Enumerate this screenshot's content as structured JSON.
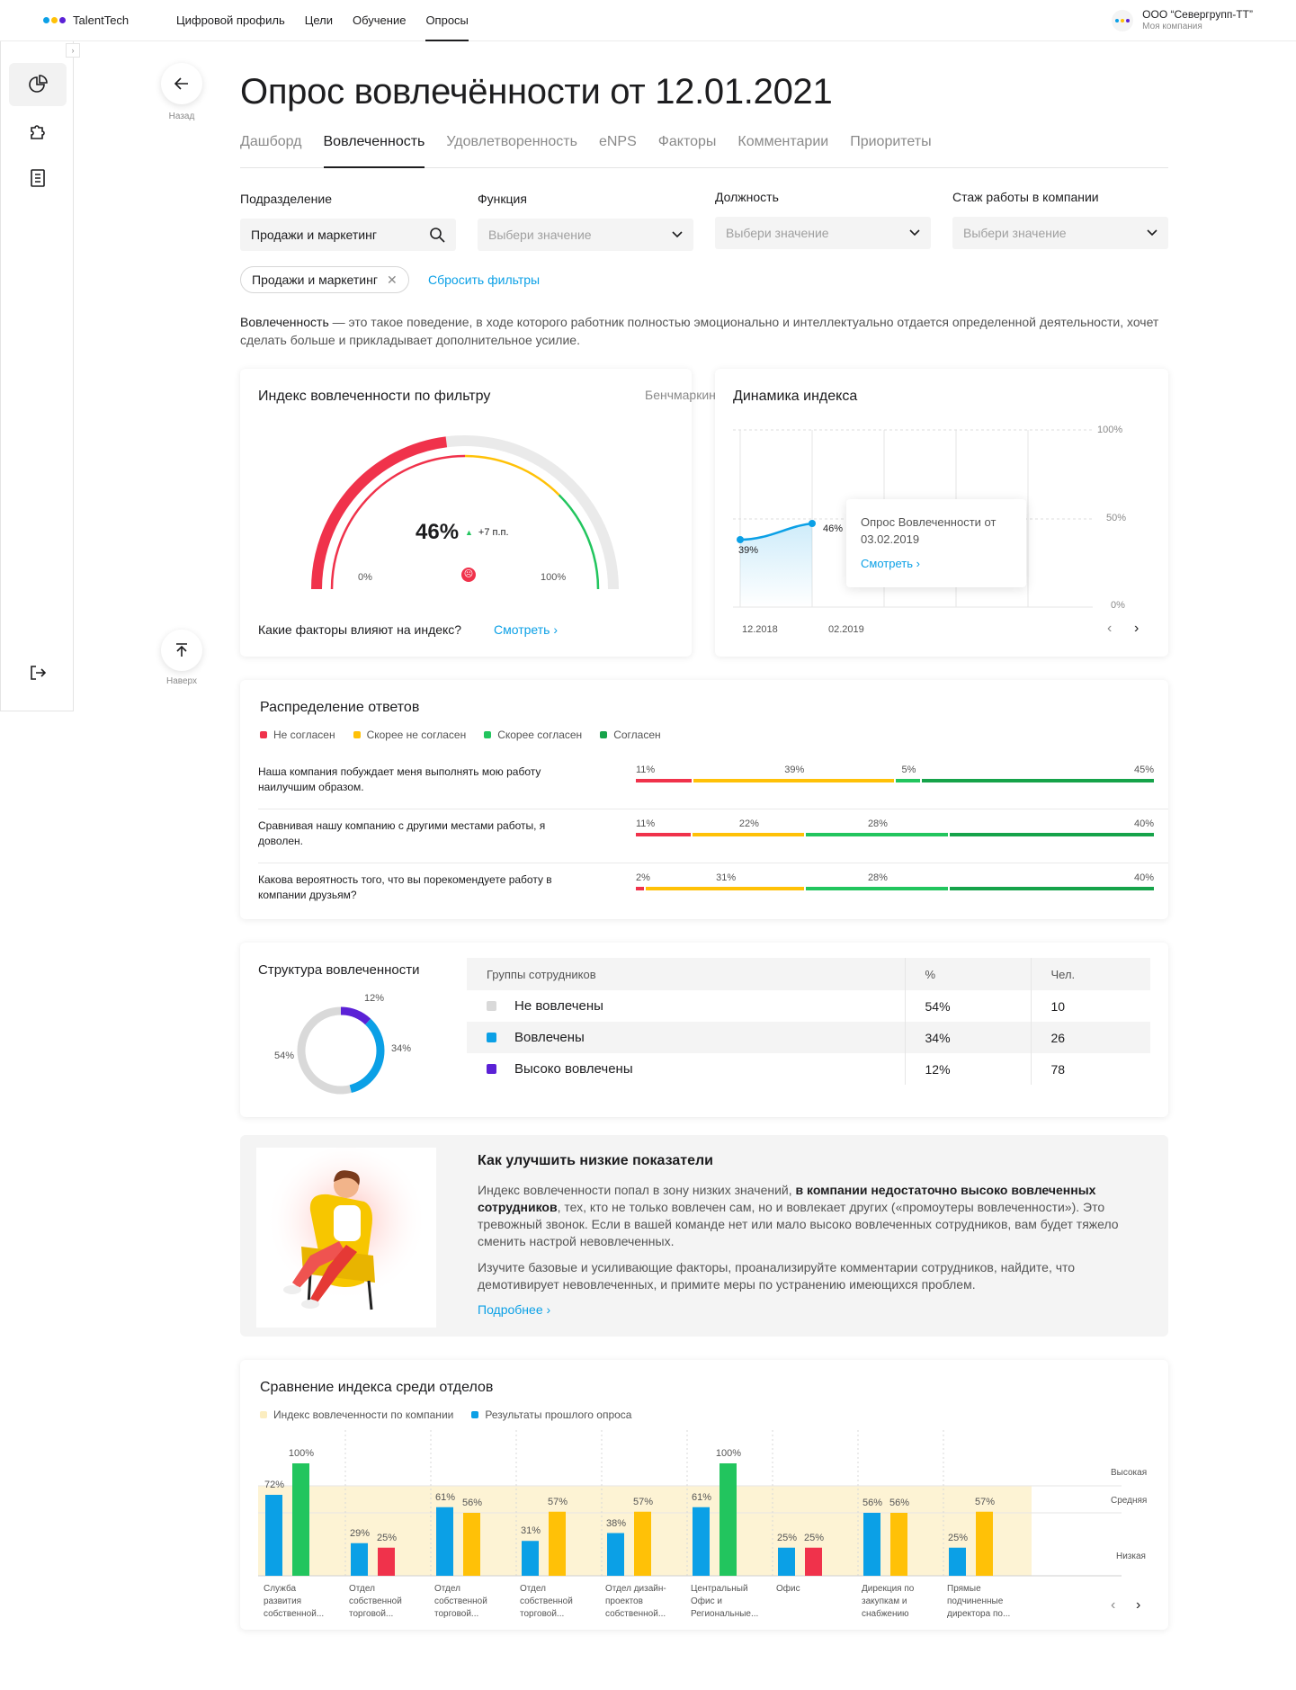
{
  "brand": {
    "name": "TalentTech",
    "dot_colors": [
      "#0ba0e6",
      "#ffc107",
      "#5b21d6"
    ]
  },
  "nav": [
    "Цифровой профиль",
    "Цели",
    "Обучение",
    "Опросы"
  ],
  "company": {
    "name": "ООО “Севергрупп-ТТ”",
    "subtitle": "Моя компания"
  },
  "fab": {
    "back": "Назад",
    "top": "Наверх"
  },
  "title": "Опрос вовлечённости от 12.01.2021",
  "tabs": [
    "Дашборд",
    "Вовлеченность",
    "Удовлетворенность",
    "eNPS",
    "Факторы",
    "Комментарии",
    "Приоритеты"
  ],
  "filters": {
    "department": {
      "label": "Подразделение",
      "value": "Продажи и маркетинг"
    },
    "function": {
      "label": "Функция",
      "placeholder": "Выбери значение"
    },
    "position": {
      "label": "Должность",
      "placeholder": "Выбери значение"
    },
    "tenure": {
      "label": "Стаж работы в компании",
      "placeholder": "Выбери значение"
    },
    "chip": "Продажи и маркетинг",
    "reset": "Сбросить фильтры"
  },
  "description": {
    "term": "Вовлеченность",
    "text": " — это такое поведение, в ходе которого работник полностью эмоционально и интеллектуально отдается определенной деятельности, хочет сделать больше и прикладывает дополнительное усилие."
  },
  "gauge": {
    "title": "Индекс вовлеченности по фильтру",
    "benchmark": "Бенчмаркинг",
    "value_text": "46%",
    "value": 46,
    "delta": "+7 п.п.",
    "min_label": "0%",
    "max_label": "100%",
    "footer_question": "Какие факторы влияют на индекс?",
    "footer_link": "Смотреть"
  },
  "dynamics": {
    "title": "Динамика индекса",
    "y_labels": [
      "100%",
      "50%",
      "0%"
    ],
    "x_labels": [
      "12.2018",
      "02.2019"
    ],
    "point_labels": [
      "39%",
      "46%"
    ],
    "tooltip_title": "Опрос Вовлеченности от 03.02.2019",
    "tooltip_link": "Смотреть"
  },
  "distribution": {
    "title": "Распределение ответов",
    "legend": [
      {
        "label": "Не согласен",
        "color": "#f0324b"
      },
      {
        "label": "Скорее не согласен",
        "color": "#ffc107"
      },
      {
        "label": "Скорее согласен",
        "color": "#22c55e"
      },
      {
        "label": "Согласен",
        "color": "#16a34a"
      }
    ],
    "rows": [
      {
        "question": "Наша компания побуждает меня выполнять мою работу наилучшим образом.",
        "values": [
          11,
          39,
          5,
          45
        ],
        "labels": [
          "11%",
          "39%",
          "5%",
          "45%"
        ]
      },
      {
        "question": "Сравнивая нашу компанию с другими местами работы, я доволен.",
        "values": [
          11,
          22,
          28,
          40
        ],
        "labels": [
          "11%",
          "22%",
          "28%",
          "40%"
        ]
      },
      {
        "question": "Какова вероятность того, что вы порекомендуете работу в компании друзьям?",
        "values": [
          2,
          31,
          28,
          40
        ],
        "labels": [
          "2%",
          "31%",
          "28%",
          "40%"
        ]
      }
    ]
  },
  "structure": {
    "title": "Структура вовлеченности",
    "headers": [
      "Группы сотрудников",
      "%",
      "Чел."
    ],
    "rows": [
      {
        "group": "Не вовлечены",
        "pct": "54%",
        "count": "10",
        "color": "#d9d9d9",
        "value": 54
      },
      {
        "group": "Вовлечены",
        "pct": "34%",
        "count": "26",
        "color": "#0ba0e6",
        "value": 34
      },
      {
        "group": "Высоко вовлечены",
        "pct": "12%",
        "count": "78",
        "color": "#5b21d6",
        "value": 12
      }
    ],
    "donut_labels": [
      "54%",
      "34%",
      "12%"
    ]
  },
  "improve": {
    "title": "Как улучшить низкие показатели",
    "p1_a": "Индекс вовлеченности попал в зону низких значений, ",
    "p1_b": "в компании недостаточно высоко вовлеченных сотрудников",
    "p1_c": ", тех, кто не только вовлечен сам, но и вовлекает других («промоутеры вовлеченности»). Это тревожный звонок. Если в вашей команде нет или мало высоко вовлеченных сотрудников, вам будет тяжело сменить настрой невовлеченных.",
    "p2": "Изучите базовые и усиливающие факторы, проанализируйте комментарии сотрудников, найдите, что демотивирует невовлеченных, и примите меры по устранению имеющихся проблем.",
    "link": "Подробнее"
  },
  "comparison": {
    "title": "Сравнение индекса среди отделов",
    "legend": [
      "Индекс вовлеченности по компании",
      "Результаты прошлого опроса"
    ],
    "zones": [
      "Высокая",
      "Средняя",
      "Низкая"
    ]
  },
  "chart_data": {
    "type": "bar",
    "title": "Сравнение индекса среди отделов",
    "categories": [
      "Служба развития собственной...",
      "Отдел собственной торговой...",
      "Отдел собственной торговой...",
      "Отдел собственной торговой...",
      "Отдел дизайн-проектов собственной...",
      "Центральный Офис и Региональные...",
      "Офис",
      "Дирекция по закупкам и снабжению",
      "Прямые подчиненные директора по..."
    ],
    "series": [
      {
        "name": "Результаты прошлого опроса",
        "values": [
          72,
          29,
          61,
          31,
          38,
          61,
          25,
          56,
          25
        ],
        "color": "#0ba0e6"
      },
      {
        "name": "Индекс вовлеченности по компании",
        "values": [
          100,
          25,
          56,
          57,
          57,
          100,
          25,
          56,
          57
        ],
        "colors": [
          "#22c55e",
          "#f0324b",
          "#ffc107",
          "#ffc107",
          "#ffc107",
          "#22c55e",
          "#f0324b",
          "#ffc107",
          "#ffc107"
        ]
      }
    ],
    "ylim": [
      0,
      100
    ]
  }
}
